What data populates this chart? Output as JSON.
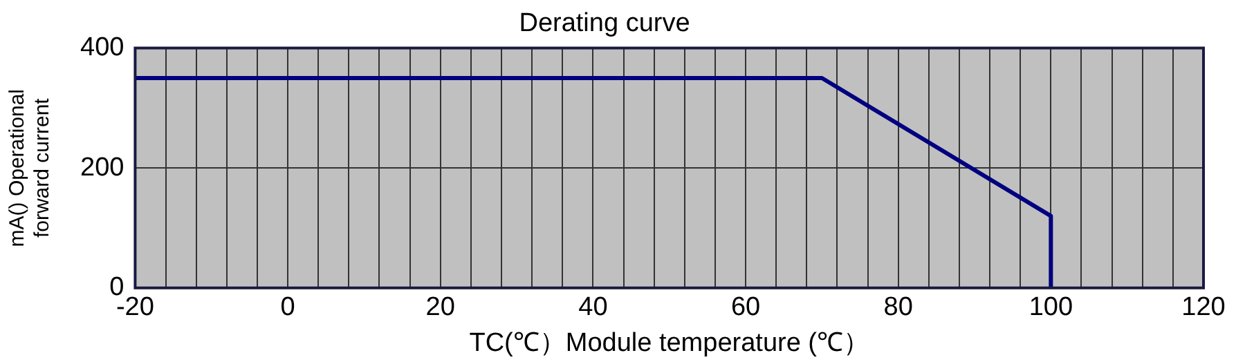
{
  "chart_data": {
    "type": "line",
    "title": "Derating curve",
    "xlabel": "TC(℃）Module temperature (℃）",
    "ylabel": "mA() Operational forward current",
    "x": [
      -20,
      70,
      100,
      100
    ],
    "series": [
      {
        "color": "#000080",
        "values": [
          350,
          350,
          120,
          0
        ]
      }
    ],
    "xlim": [
      -20,
      120
    ],
    "xticks": [
      -20,
      {
        "value": -16,
        "label": null
      },
      {
        "value": -12,
        "label": null
      },
      {
        "value": -8,
        "label": null
      },
      {
        "value": -4,
        "label": null
      },
      0,
      {
        "value": 4,
        "label": null
      },
      {
        "value": 8,
        "label": null
      },
      {
        "value": 12,
        "label": null
      },
      {
        "value": 16,
        "label": null
      },
      20,
      {
        "value": 24,
        "label": null
      },
      {
        "value": 28,
        "label": null
      },
      {
        "value": 32,
        "label": null
      },
      {
        "value": 36,
        "label": null
      },
      40,
      {
        "value": 44,
        "label": null
      },
      {
        "value": 48,
        "label": null
      },
      {
        "value": 52,
        "label": null
      },
      {
        "value": 56,
        "label": null
      },
      60,
      {
        "value": 64,
        "label": null
      },
      {
        "value": 68,
        "label": null
      },
      {
        "value": 72,
        "label": null
      },
      {
        "value": 76,
        "label": null
      },
      80,
      {
        "value": 84,
        "label": null
      },
      {
        "value": 88,
        "label": null
      },
      {
        "value": 92,
        "label": null
      },
      {
        "value": 96,
        "label": null
      },
      100,
      {
        "value": 104,
        "label": null
      },
      {
        "value": 108,
        "label": null
      },
      {
        "value": 112,
        "label": null
      },
      {
        "value": 116,
        "label": null
      },
      120
    ],
    "ylim": [
      0,
      400
    ],
    "yticks": [
      0,
      200,
      400
    ],
    "grid": true,
    "legend": false,
    "marker": "none",
    "line_style": "solid"
  }
}
